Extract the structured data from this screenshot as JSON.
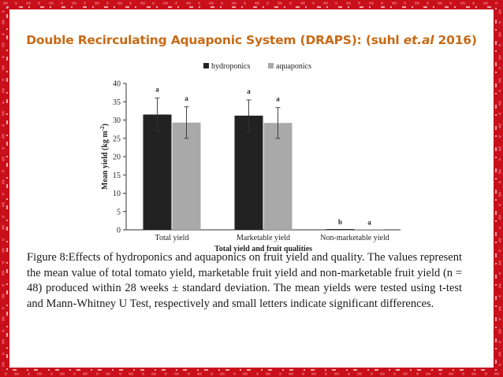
{
  "slide": {
    "title_main": "Double Recirculating Aquaponic System (DRAPS): (suhl ",
    "title_em": "et.al",
    "title_end": " 2016)",
    "caption": "Figure 8:Effects of hydroponics and aquaponics on fruit yield and quality. The values represent the mean value of total tomato yield, marketable fruit yield and non-marketable fruit yield (n = 48) produced within 28 weeks ± standard deviation. The mean yields were tested using t-test and Mann-Whitney U Test, respectively and small letters indicate significant differences."
  },
  "colors": {
    "frame": "#c8101a",
    "title": "#c86a16",
    "hydroponics": "#222222",
    "aquaponics": "#a9a9a9"
  },
  "chart_data": {
    "type": "bar",
    "categories": [
      "Total yield",
      "Marketable yield",
      "Non-marketable yield"
    ],
    "series": [
      {
        "name": "hydroponics",
        "values": [
          31.5,
          31.2,
          0.2
        ],
        "errors": [
          4.5,
          4.3,
          0
        ],
        "letters": [
          "a",
          "a",
          "b"
        ]
      },
      {
        "name": "aquaponics",
        "values": [
          29.3,
          29.2,
          0.1
        ],
        "errors": [
          4.3,
          4.2,
          0
        ],
        "letters": [
          "a",
          "a",
          "a"
        ]
      }
    ],
    "xlabel": "Total yield and fruit qualities",
    "ylabel": "Mean yield (kg m",
    "ylabel_sup": "-2",
    "ylabel_end": ")",
    "ylim": [
      0,
      40
    ],
    "yticks": [
      0,
      5,
      10,
      15,
      20,
      25,
      30,
      35,
      40
    ],
    "legend": "top",
    "grid": false
  }
}
